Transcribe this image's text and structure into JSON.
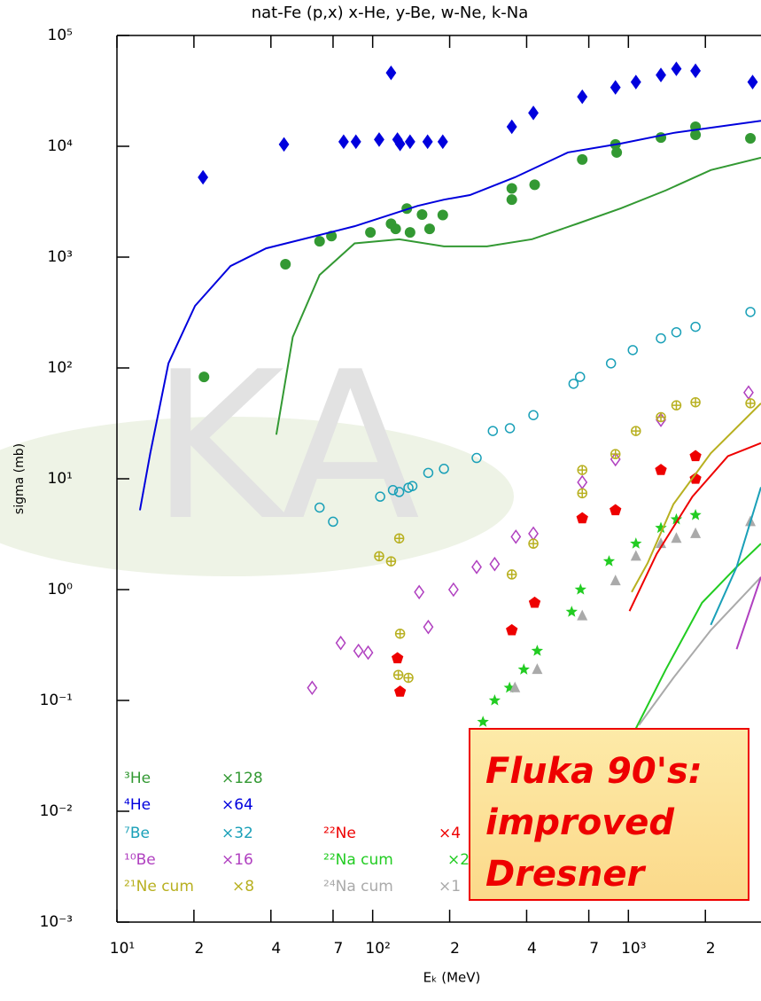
{
  "chart_data": {
    "type": "scatter",
    "title": "nat-Fe (p,x) x-He, y-Be, w-Ne, k-Na",
    "x_label": "Eₖ (MeV)",
    "y_label": "sigma (mb)",
    "watermark": "KA",
    "xlog": true,
    "ylog": true,
    "xlim": [
      10,
      3300
    ],
    "ylim": [
      0.001,
      100000
    ],
    "xticks": [
      {
        "value": 10,
        "label": "10¹"
      },
      {
        "value": 20,
        "label": "2"
      },
      {
        "value": 40,
        "label": "4"
      },
      {
        "value": 70,
        "label": "7"
      },
      {
        "value": 100,
        "label": "10²"
      },
      {
        "value": 200,
        "label": "2"
      },
      {
        "value": 400,
        "label": "4"
      },
      {
        "value": 700,
        "label": "7"
      },
      {
        "value": 1000,
        "label": "10³"
      },
      {
        "value": 2000,
        "label": "2"
      }
    ],
    "yticks": [
      {
        "value": 100000,
        "label": "10⁵"
      },
      {
        "value": 10000,
        "label": "10⁴"
      },
      {
        "value": 1000,
        "label": "10³"
      },
      {
        "value": 100,
        "label": "10²"
      },
      {
        "value": 10,
        "label": "10¹"
      },
      {
        "value": 1,
        "label": "10⁰"
      },
      {
        "value": 0.1,
        "label": "10⁻¹"
      },
      {
        "value": 0.01,
        "label": "10⁻²"
      },
      {
        "value": 0.001,
        "label": "10⁻³"
      }
    ],
    "series": [
      {
        "name": "³He",
        "factor": "×128",
        "color": "#339933",
        "marker": "circle",
        "x": [
          21.9,
          45.6,
          62,
          69,
          98,
          118,
          123,
          136,
          140,
          156,
          167,
          188,
          350,
          350,
          430,
          660,
          890,
          900,
          1340,
          1830,
          1830,
          3000
        ],
        "values": [
          83,
          863,
          1390,
          1550,
          1670,
          2000,
          1800,
          2740,
          1670,
          2420,
          1800,
          2400,
          4170,
          3300,
          4500,
          7600,
          10400,
          8800,
          12000,
          15000,
          12700,
          11800
        ]
      },
      {
        "name": "⁴He",
        "factor": "×64",
        "color": "#0000dd",
        "marker": "diamond",
        "x": [
          21.7,
          45,
          77,
          86,
          106,
          118,
          125,
          128,
          140,
          164,
          188,
          350,
          425,
          660,
          890,
          1070,
          1340,
          1540,
          1830,
          3060
        ],
        "values": [
          5250,
          10400,
          11000,
          11000,
          11500,
          46000,
          11500,
          10500,
          11000,
          11000,
          11000,
          15000,
          20000,
          28000,
          34000,
          38000,
          44000,
          50000,
          48000,
          38000
        ]
      },
      {
        "name": "⁷Be",
        "factor": "×32",
        "color": "#1aa0b8",
        "marker": "ocircle",
        "x": [
          62,
          70,
          107,
          120,
          127,
          138,
          143,
          165,
          190,
          255,
          295,
          344,
          425,
          610,
          647,
          855,
          1040,
          1340,
          1540,
          1830,
          3000
        ],
        "values": [
          5.5,
          4.1,
          6.9,
          7.9,
          7.6,
          8.3,
          8.6,
          11.3,
          12.3,
          15.4,
          27,
          28.6,
          37.5,
          72,
          83,
          110,
          145,
          185,
          210,
          235,
          320
        ]
      },
      {
        "name": "¹⁰Be",
        "factor": "×16",
        "color": "#b040c0",
        "marker": "odiamond",
        "x": [
          58,
          75,
          88,
          96,
          152,
          165,
          207,
          255,
          300,
          363,
          425,
          660,
          890,
          1340,
          2950
        ],
        "values": [
          0.13,
          0.33,
          0.28,
          0.27,
          0.95,
          0.46,
          1.0,
          1.6,
          1.7,
          3.0,
          3.2,
          9.3,
          15,
          34,
          60
        ]
      },
      {
        "name": "²¹Ne cum",
        "factor": "×8",
        "color": "#b8b020",
        "marker": "pcircle",
        "x": [
          106,
          118,
          127,
          128,
          126,
          138,
          350,
          425,
          660,
          660,
          890,
          1070,
          1340,
          1540,
          1830,
          3000
        ],
        "values": [
          2.0,
          1.8,
          2.9,
          0.4,
          0.17,
          0.16,
          1.37,
          2.6,
          12,
          7.4,
          16.7,
          27,
          36,
          46,
          49,
          48
        ]
      },
      {
        "name": "²²Ne",
        "factor": "×4",
        "color": "#ee0000",
        "marker": "pentagon",
        "x": [
          125,
          128,
          350,
          430,
          660,
          890,
          1340,
          1830,
          1830
        ],
        "values": [
          0.24,
          0.12,
          0.43,
          0.76,
          4.4,
          5.2,
          12,
          10,
          16
        ]
      },
      {
        "name": "²²Na cum",
        "factor": "×2",
        "color": "#22cc22",
        "marker": "star",
        "x": [
          270,
          300,
          343,
          390,
          440,
          600,
          650,
          840,
          1070,
          1340,
          1540,
          1830
        ],
        "values": [
          0.064,
          0.1,
          0.13,
          0.19,
          0.28,
          0.63,
          1.0,
          1.8,
          2.6,
          3.6,
          4.3,
          4.7
        ]
      },
      {
        "name": "²⁴Na cum",
        "factor": "×1",
        "color": "#aaaaaa",
        "marker": "triangle",
        "x": [
          360,
          440,
          660,
          890,
          1070,
          1340,
          1540,
          1830,
          3000
        ],
        "values": [
          0.13,
          0.19,
          0.58,
          1.2,
          2.0,
          2.6,
          2.9,
          3.2,
          4.1
        ]
      },
      {
        "type": "line",
        "color": "#0000dd",
        "x": [
          12.3,
          13.5,
          15.9,
          20.2,
          27.8,
          38.3,
          85,
          150,
          190,
          240,
          360,
          580,
          935,
          1500,
          3300
        ],
        "values": [
          5.2,
          17,
          110,
          363,
          830,
          1200,
          1900,
          2900,
          3300,
          3630,
          5250,
          8800,
          10600,
          13200,
          17000
        ]
      },
      {
        "type": "line",
        "color": "#339933",
        "x": [
          42,
          48.7,
          62,
          85,
          127,
          190,
          280,
          420,
          630,
          935,
          1400,
          2100,
          3300
        ],
        "values": [
          25,
          190,
          690,
          1330,
          1450,
          1250,
          1250,
          1450,
          2000,
          2760,
          4000,
          6100,
          7900
        ]
      },
      {
        "type": "line",
        "color": "#b8b020",
        "x": [
          1030,
          1190,
          1500,
          2100,
          3300
        ],
        "values": [
          0.95,
          1.74,
          5.9,
          17,
          48
        ]
      },
      {
        "type": "line",
        "color": "#ee0000",
        "x": [
          1010,
          1290,
          1780,
          2450,
          3300
        ],
        "values": [
          0.64,
          2.1,
          6.9,
          16,
          21
        ]
      },
      {
        "type": "line",
        "color": "#22cc22",
        "x": [
          1030,
          1400,
          1940,
          2650,
          3300
        ],
        "values": [
          0.047,
          0.19,
          0.76,
          1.6,
          2.6
        ]
      },
      {
        "type": "line",
        "color": "#aaaaaa",
        "x": [
          1100,
          1500,
          2100,
          3300
        ],
        "values": [
          0.06,
          0.16,
          0.43,
          1.3
        ]
      },
      {
        "type": "line",
        "color": "#1aa0b8",
        "x": [
          2100,
          2650,
          3300
        ],
        "values": [
          0.48,
          1.6,
          8.4
        ]
      },
      {
        "type": "line",
        "color": "#b040c0",
        "x": [
          2650,
          3300
        ],
        "values": [
          0.29,
          1.3
        ]
      }
    ],
    "annotation": [
      "Fluka 90's:",
      "improved",
      "Dresner"
    ]
  }
}
